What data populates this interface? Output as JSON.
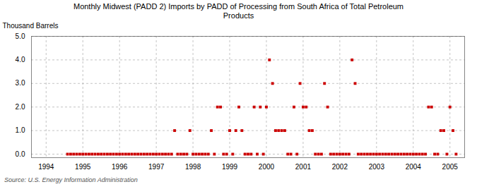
{
  "chart_data": {
    "type": "scatter",
    "title": "Monthly Midwest (PADD 2) Imports by PADD of Processing from South Africa of Total Petroleum\nProducts",
    "ylabel": "Thousand Barrels",
    "source": "Source: U.S. Energy Information Administration",
    "color": "#cc0000",
    "marker": "square",
    "grid": true,
    "xlim": [
      1993.6,
      2005.4
    ],
    "ylim": [
      -0.15,
      5.0
    ],
    "xticks": [
      1994,
      1995,
      1996,
      1997,
      1998,
      1999,
      2000,
      2001,
      2002,
      2003,
      2004,
      2005
    ],
    "yticks": [
      {
        "value": 0.0,
        "label": "0.0"
      },
      {
        "value": 1.0,
        "label": "1.0"
      },
      {
        "value": 2.0,
        "label": "2.0"
      },
      {
        "value": 3.0,
        "label": "3.0"
      },
      {
        "value": 4.0,
        "label": "4.0"
      },
      {
        "value": 5.0,
        "label": "5.0"
      }
    ],
    "x": [
      1994.583,
      1994.667,
      1994.75,
      1994.833,
      1994.917,
      1995.0,
      1995.083,
      1995.167,
      1995.25,
      1995.333,
      1995.417,
      1995.5,
      1995.583,
      1995.667,
      1995.75,
      1995.833,
      1995.917,
      1996.0,
      1996.083,
      1996.167,
      1996.25,
      1996.333,
      1996.417,
      1996.5,
      1996.583,
      1996.667,
      1996.75,
      1996.833,
      1996.917,
      1997.0,
      1997.083,
      1997.167,
      1997.25,
      1997.333,
      1997.417,
      1997.5,
      1997.583,
      1997.667,
      1997.75,
      1997.833,
      1997.917,
      1998.0,
      1998.083,
      1998.167,
      1998.25,
      1998.333,
      1998.417,
      1998.5,
      1998.583,
      1998.667,
      1998.75,
      1998.833,
      1998.917,
      1999.0,
      1999.083,
      1999.167,
      1999.25,
      1999.333,
      1999.417,
      1999.5,
      1999.583,
      1999.667,
      1999.75,
      1999.833,
      1999.917,
      2000.0,
      2000.083,
      2000.167,
      2000.25,
      2000.333,
      2000.417,
      2000.5,
      2000.583,
      2000.667,
      2000.75,
      2000.833,
      2000.917,
      2001.0,
      2001.083,
      2001.167,
      2001.25,
      2001.333,
      2001.417,
      2001.5,
      2001.583,
      2001.667,
      2001.75,
      2001.833,
      2001.917,
      2002.0,
      2002.083,
      2002.167,
      2002.25,
      2002.333,
      2002.417,
      2002.5,
      2002.583,
      2002.667,
      2002.75,
      2002.833,
      2002.917,
      2003.0,
      2003.083,
      2003.167,
      2003.25,
      2003.333,
      2003.417,
      2003.5,
      2003.583,
      2003.667,
      2003.75,
      2003.833,
      2003.917,
      2004.0,
      2004.083,
      2004.167,
      2004.25,
      2004.333,
      2004.417,
      2004.5,
      2004.583,
      2004.667,
      2004.75,
      2004.833,
      2004.917,
      2005.0,
      2005.083,
      2005.167
    ],
    "values": [
      0,
      0,
      0,
      0,
      0,
      0,
      0,
      0,
      0,
      0,
      0,
      0,
      0,
      0,
      0,
      0,
      0,
      0,
      0,
      0,
      0,
      0,
      0,
      0,
      0,
      0,
      0,
      0,
      0,
      0,
      0,
      0,
      0,
      0,
      0,
      1,
      0,
      0,
      0,
      0,
      1,
      0,
      0,
      0,
      0,
      0,
      0,
      1,
      0,
      2,
      2,
      0,
      0,
      1,
      0,
      1,
      2,
      1,
      0,
      0,
      0,
      2,
      0,
      2,
      0,
      2,
      4,
      3,
      1,
      1,
      1,
      1,
      0,
      0,
      2,
      0,
      3,
      2,
      2,
      1,
      1,
      0,
      0,
      0,
      3,
      2,
      0,
      0,
      0,
      0,
      0,
      0,
      0,
      4,
      3,
      0,
      0,
      0,
      0,
      0,
      0,
      0,
      0,
      0,
      0,
      0,
      0,
      0,
      0,
      0,
      0,
      0,
      0,
      0,
      0,
      0,
      0,
      0,
      2,
      2,
      0,
      0,
      1,
      1,
      0,
      2,
      1,
      0
    ]
  }
}
